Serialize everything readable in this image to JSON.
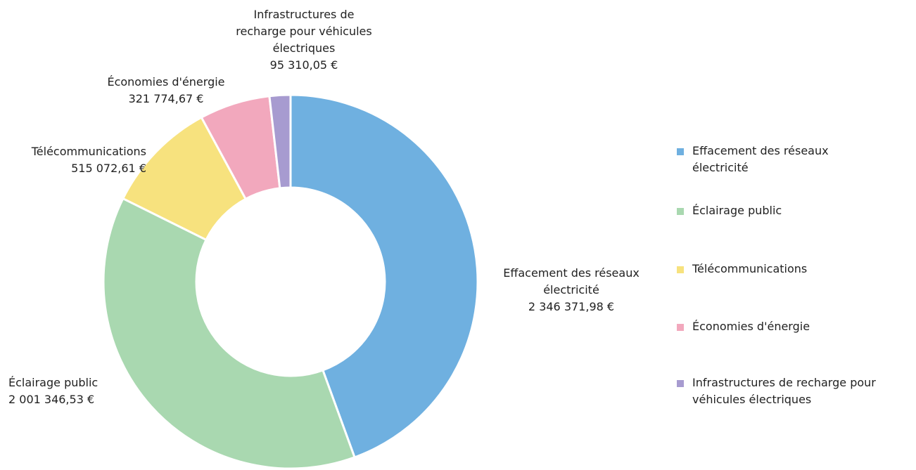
{
  "chart_data": {
    "type": "pie",
    "donut": true,
    "title": "",
    "legend_position": "right",
    "slices": [
      {
        "label": "Effacement des réseaux électricité",
        "value": 2346371.98,
        "value_label": "2 346 371,98 €",
        "color": "#6fb0e0",
        "label_lines": [
          "Effacement des réseaux",
          "électricité",
          "2 346 371,98 €"
        ],
        "legend_lines": [
          "Effacement des réseaux",
          "électricité"
        ]
      },
      {
        "label": "Éclairage public",
        "value": 2001346.53,
        "value_label": "2 001 346,53 €",
        "color": "#a9d8b0",
        "label_lines": [
          "Éclairage public",
          "2 001 346,53 €"
        ],
        "legend_lines": [
          "Éclairage public"
        ]
      },
      {
        "label": "Télécommunications",
        "value": 515072.61,
        "value_label": "515 072,61 €",
        "color": "#f7e27e",
        "label_lines": [
          "Télécommunications",
          "515 072,61 €"
        ],
        "legend_lines": [
          "Télécommunications"
        ]
      },
      {
        "label": "Économies d'énergie",
        "value": 321774.67,
        "value_label": "321 774,67 €",
        "color": "#f2a8bd",
        "label_lines": [
          "Économies d'énergie",
          "321 774,67 €"
        ],
        "legend_lines": [
          "Économies d'énergie"
        ]
      },
      {
        "label": "Infrastructures de recharge pour véhicules électriques",
        "value": 95310.05,
        "value_label": "95 310,05 €",
        "color": "#a79bd0",
        "label_lines": [
          "Infrastructures de",
          "recharge pour véhicules",
          "électriques",
          "95 310,05 €"
        ],
        "legend_lines": [
          "Infrastructures de recharge pour",
          "véhicules électriques"
        ]
      }
    ]
  }
}
